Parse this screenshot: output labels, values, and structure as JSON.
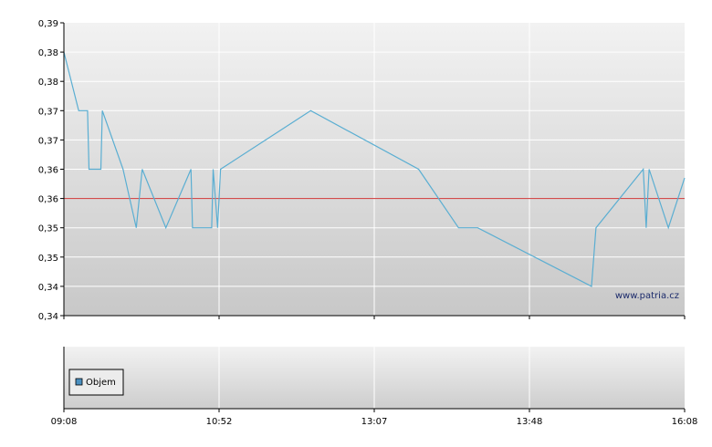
{
  "chart_data": [
    {
      "type": "line",
      "title": "",
      "xlabel": "",
      "ylabel": "",
      "y_tick_labels": [
        "0,34",
        "0,34",
        "0,35",
        "0,35",
        "0,36",
        "0,36",
        "0,37",
        "0,37",
        "0,38",
        "0,38",
        "0,39"
      ],
      "ylim": [
        0.34,
        0.39
      ],
      "xlim_minutes": [
        548,
        968
      ],
      "x_tick_labels": [
        "09:08",
        "10:52",
        "13:07",
        "13:48",
        "16:08"
      ],
      "reference_line": {
        "value": 0.36,
        "color": "#cc3333"
      },
      "line_color": "#5aaed2",
      "grid": true,
      "watermark": "www.patria.cz",
      "series": [
        {
          "name": "",
          "points": [
            [
              548,
              0.385
            ],
            [
              558,
              0.375
            ],
            [
              564,
              0.375
            ],
            [
              565,
              0.365
            ],
            [
              573,
              0.365
            ],
            [
              574,
              0.375
            ],
            [
              588,
              0.365
            ],
            [
              597,
              0.355
            ],
            [
              601,
              0.365
            ],
            [
              617,
              0.355
            ],
            [
              634,
              0.365
            ],
            [
              635,
              0.355
            ],
            [
              648,
              0.355
            ],
            [
              649,
              0.365
            ],
            [
              652,
              0.355
            ],
            [
              654,
              0.365
            ],
            [
              715,
              0.375
            ],
            [
              788,
              0.365
            ],
            [
              815,
              0.355
            ],
            [
              828,
              0.355
            ],
            [
              905,
              0.345
            ],
            [
              908,
              0.355
            ],
            [
              940,
              0.365
            ],
            [
              942,
              0.355
            ],
            [
              944,
              0.365
            ],
            [
              957,
              0.355
            ],
            [
              968,
              0.3635
            ]
          ]
        }
      ]
    },
    {
      "type": "bar",
      "title": "",
      "series": [
        {
          "name": "Objem",
          "values": []
        }
      ],
      "legend": {
        "label": "Objem",
        "placement": "top-left",
        "swatch_color": "#4a90c0"
      }
    }
  ]
}
